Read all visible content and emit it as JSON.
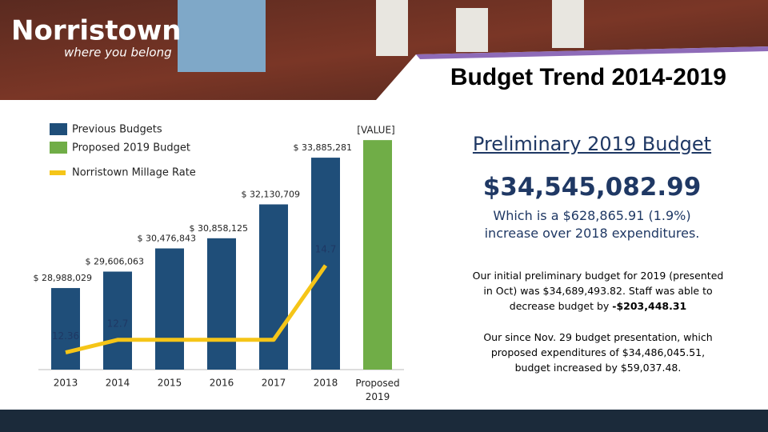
{
  "slide": {
    "logo": "Norristown",
    "tagline": "where you belong",
    "title": "Budget Trend 2014-2019",
    "panel_heading": "Preliminary 2019 Budget",
    "panel_amount": "$34,545,082.99",
    "panel_increase": "Which is a $628,865.91 (1.9%) increase over 2018 expenditures.",
    "note_1": "Our initial preliminary budget for 2019 (presented in Oct) was $34,689,493.82.  Staff was able to decrease budget by",
    "note_1_bold": "-$203,448.31",
    "note_2": "Our since Nov. 29 budget presentation, which proposed expenditures of $34,486,045.51, budget increased by $59,037.48."
  },
  "chart_data": {
    "type": "bar",
    "categories": [
      "2013",
      "2014",
      "2015",
      "2016",
      "2017",
      "2018",
      "Proposed 2019"
    ],
    "series": [
      {
        "name": "Previous Budgets",
        "color": "#1f4e79",
        "values": [
          28988029,
          29606063,
          30476843,
          30858125,
          32130709,
          33885281,
          null
        ],
        "value_labels": [
          "$ 28,988,029",
          "$ 29,606,063",
          "$ 30,476,843",
          "$ 30,858,125",
          "$ 32,130,709",
          "$ 33,885,281",
          null
        ]
      },
      {
        "name": "Proposed 2019 Budget",
        "color": "#70ad47",
        "values": [
          null,
          null,
          null,
          null,
          null,
          null,
          34545083
        ]
      },
      {
        "name": "Norristown Millage Rate",
        "color": "#f5c518",
        "type": "line",
        "axis": "y2",
        "values": [
          12.36,
          12.7,
          12.7,
          12.7,
          12.7,
          14.7,
          null
        ],
        "value_labels": [
          "12.36",
          "12.7",
          null,
          null,
          null,
          "14.7",
          null
        ]
      }
    ],
    "annotation": "[VALUE]",
    "ylim": [
      25925000,
      35150000
    ],
    "y2lim": [
      11.9,
      18.5
    ]
  }
}
